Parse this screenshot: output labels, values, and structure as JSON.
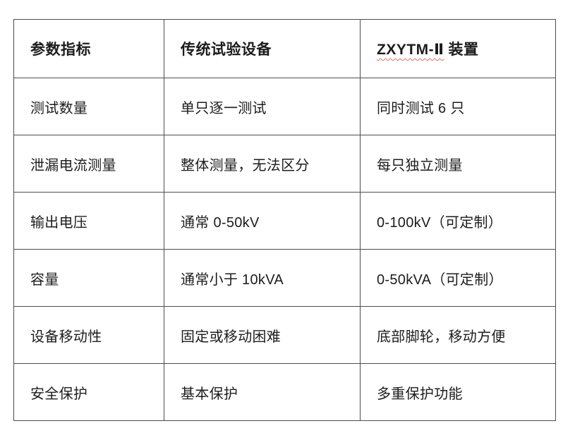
{
  "page": {
    "background_color": "#ffffff",
    "text_color": "#1c1c1c",
    "border_color": "#4d4d4d",
    "spellcheck_underline_color": "#e06b65"
  },
  "table": {
    "header": {
      "param_label": "参数指标",
      "traditional_label": "传统试验设备",
      "device_brand": "ZXYTM-Ⅱ",
      "device_suffix": "装置"
    },
    "rows": [
      {
        "param": "测试数量",
        "traditional": "单只逐一测试",
        "device": "同时测试 6 只"
      },
      {
        "param": "泄漏电流测量",
        "traditional": "整体测量，无法区分",
        "device": "每只独立测量"
      },
      {
        "param": "输出电压",
        "traditional": "通常 0-50kV",
        "device": "0-100kV（可定制）"
      },
      {
        "param": "容量",
        "traditional": "通常小于 10kVA",
        "device": "0-50kVA（可定制）"
      },
      {
        "param": "设备移动性",
        "traditional": "固定或移动困难",
        "device": "底部脚轮，移动方便"
      },
      {
        "param": "安全保护",
        "traditional": "基本保护",
        "device": "多重保护功能"
      }
    ]
  }
}
